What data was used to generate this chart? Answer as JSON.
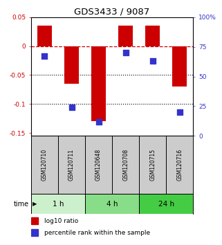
{
  "title": "GDS3433 / 9087",
  "samples": [
    "GSM120710",
    "GSM120711",
    "GSM120648",
    "GSM120708",
    "GSM120715",
    "GSM120716"
  ],
  "log10_ratio": [
    0.035,
    -0.065,
    -0.13,
    0.035,
    0.035,
    -0.07
  ],
  "percentile_rank": [
    67,
    24,
    12,
    70,
    63,
    20
  ],
  "left_ylim": [
    -0.155,
    0.05
  ],
  "right_ylim": [
    0,
    100
  ],
  "left_yticks": [
    0.05,
    0.0,
    -0.05,
    -0.1,
    -0.15
  ],
  "left_yticklabels": [
    "0.05",
    "0",
    "-0.05",
    "-0.1",
    "-0.15"
  ],
  "right_yticks": [
    100,
    75,
    50,
    25,
    0
  ],
  "right_yticklabels": [
    "100%",
    "75",
    "50",
    "25",
    "0"
  ],
  "bar_color": "#cc0000",
  "dot_color": "#3333cc",
  "time_groups": [
    {
      "label": "1 h",
      "start": 0,
      "end": 2,
      "color": "#ccf0cc"
    },
    {
      "label": "4 h",
      "start": 2,
      "end": 4,
      "color": "#88dd88"
    },
    {
      "label": "24 h",
      "start": 4,
      "end": 6,
      "color": "#44cc44"
    }
  ],
  "background_color": "#ffffff",
  "plot_bg": "#ffffff",
  "legend_bar_label": "log10 ratio",
  "legend_dot_label": "percentile rank within the sample",
  "time_label": "time",
  "bar_width": 0.55,
  "dot_size": 28,
  "sample_bg": "#cccccc"
}
